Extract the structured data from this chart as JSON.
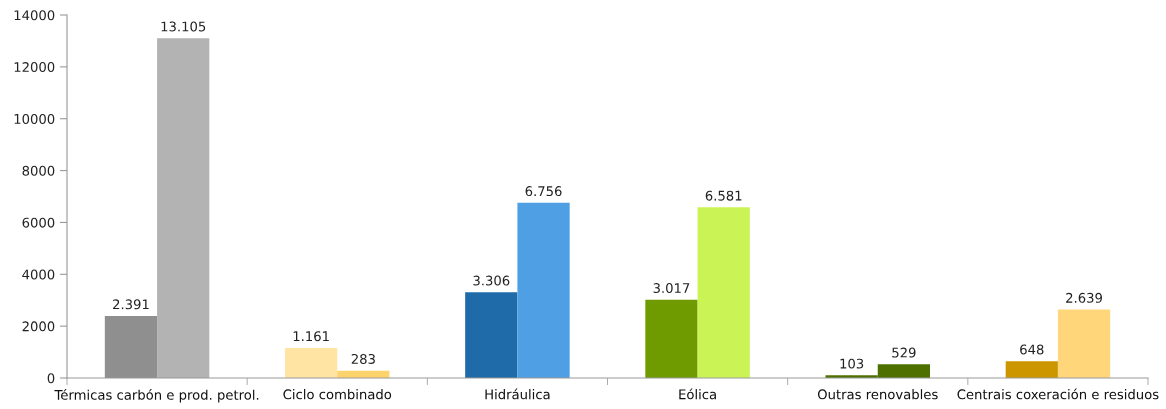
{
  "chart_data": {
    "type": "bar",
    "categories": [
      "Térmicas carbón e prod. petrol.",
      "Ciclo combinado",
      "Hidráulica",
      "Eólica",
      "Outras renovables",
      "Centrais coxeración e residuos"
    ],
    "series": [
      {
        "colors": [
          "#8f8f8f",
          "#ffe4a3",
          "#1f6aa8",
          "#6f9a00",
          "#4e7000",
          "#cc9600"
        ],
        "values": [
          2391,
          1161,
          3306,
          3017,
          103,
          648
        ],
        "value_labels": [
          "2.391",
          "1.161",
          "3.306",
          "3.017",
          "103",
          "648"
        ]
      },
      {
        "colors": [
          "#b3b3b3",
          "#ffd36b",
          "#4f9fe5",
          "#caf455",
          "#4e7000",
          "#ffd77a"
        ],
        "values": [
          13105,
          283,
          6756,
          6581,
          529,
          2639
        ],
        "value_labels": [
          "13.105",
          "283",
          "6.756",
          "6.581",
          "529",
          "2.639"
        ]
      }
    ],
    "ylim": [
      0,
      14000
    ],
    "yticks": [
      0,
      2000,
      4000,
      6000,
      8000,
      10000,
      12000,
      14000
    ],
    "grid": false
  }
}
